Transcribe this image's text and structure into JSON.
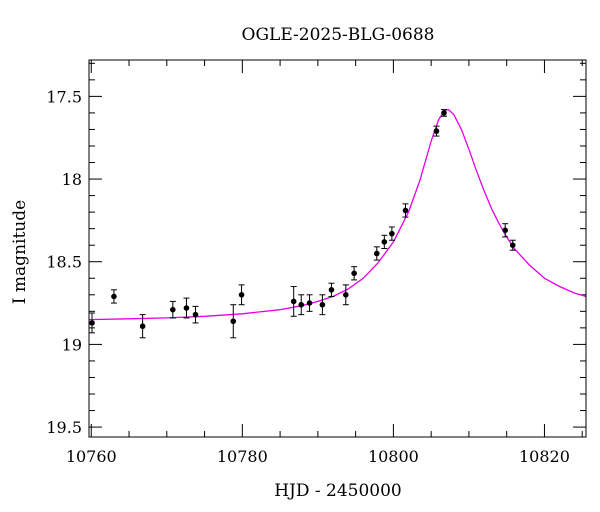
{
  "chart_data": {
    "type": "scatter",
    "title": "OGLE-2025-BLG-0688",
    "xlabel": "HJD - 2450000",
    "ylabel": "I magnitude",
    "xlim": [
      10759.7,
      10825.5
    ],
    "ylim": [
      19.56,
      17.28
    ],
    "y_inverted": true,
    "xticks": [
      10760,
      10780,
      10800,
      10820
    ],
    "xtick_labels": [
      "10760",
      "10780",
      "10800",
      "10820"
    ],
    "yticks": [
      17.5,
      18,
      18.5,
      19,
      19.5
    ],
    "ytick_labels": [
      "17.5",
      "18",
      "18.5",
      "19",
      "19.5"
    ],
    "grid": false,
    "legend": "none",
    "colors": {
      "points": "#000000",
      "model": "#e600e6"
    },
    "series": [
      {
        "kind": "points",
        "points": [
          {
            "x": 10760.1,
            "y": 18.87,
            "err": 0.06
          },
          {
            "x": 10763.0,
            "y": 18.71,
            "err": 0.04
          },
          {
            "x": 10766.8,
            "y": 18.89,
            "err": 0.07
          },
          {
            "x": 10770.8,
            "y": 18.79,
            "err": 0.05
          },
          {
            "x": 10772.6,
            "y": 18.78,
            "err": 0.06
          },
          {
            "x": 10773.8,
            "y": 18.82,
            "err": 0.05
          },
          {
            "x": 10778.8,
            "y": 18.86,
            "err": 0.1
          },
          {
            "x": 10779.9,
            "y": 18.7,
            "err": 0.06
          },
          {
            "x": 10786.8,
            "y": 18.74,
            "err": 0.09
          },
          {
            "x": 10787.8,
            "y": 18.76,
            "err": 0.06
          },
          {
            "x": 10788.9,
            "y": 18.75,
            "err": 0.05
          },
          {
            "x": 10790.6,
            "y": 18.76,
            "err": 0.06
          },
          {
            "x": 10791.8,
            "y": 18.67,
            "err": 0.04
          },
          {
            "x": 10793.7,
            "y": 18.7,
            "err": 0.06
          },
          {
            "x": 10794.8,
            "y": 18.57,
            "err": 0.04
          },
          {
            "x": 10797.8,
            "y": 18.45,
            "err": 0.04
          },
          {
            "x": 10798.8,
            "y": 18.38,
            "err": 0.04
          },
          {
            "x": 10799.8,
            "y": 18.33,
            "err": 0.04
          },
          {
            "x": 10801.6,
            "y": 18.19,
            "err": 0.04
          },
          {
            "x": 10805.7,
            "y": 17.71,
            "err": 0.03
          },
          {
            "x": 10806.7,
            "y": 17.6,
            "err": 0.02
          },
          {
            "x": 10814.8,
            "y": 18.31,
            "err": 0.04
          },
          {
            "x": 10815.8,
            "y": 18.4,
            "err": 0.03
          }
        ]
      },
      {
        "kind": "model",
        "x": [
          10759.7,
          10765,
          10770,
          10775,
          10780,
          10785,
          10788,
          10790,
          10792,
          10794,
          10796,
          10798,
          10800,
          10802,
          10803.5,
          10805,
          10806,
          10806.8,
          10807.3,
          10808,
          10809,
          10810,
          10811,
          10812,
          10813,
          10814,
          10815,
          10816,
          10818,
          10820,
          10822,
          10824,
          10825.5
        ],
        "y": [
          18.85,
          18.845,
          18.84,
          18.83,
          18.815,
          18.79,
          18.765,
          18.74,
          18.71,
          18.665,
          18.6,
          18.505,
          18.38,
          18.2,
          18.01,
          17.77,
          17.64,
          17.585,
          17.58,
          17.61,
          17.7,
          17.82,
          17.95,
          18.07,
          18.18,
          18.27,
          18.35,
          18.42,
          18.52,
          18.6,
          18.65,
          18.69,
          18.71
        ]
      }
    ]
  }
}
